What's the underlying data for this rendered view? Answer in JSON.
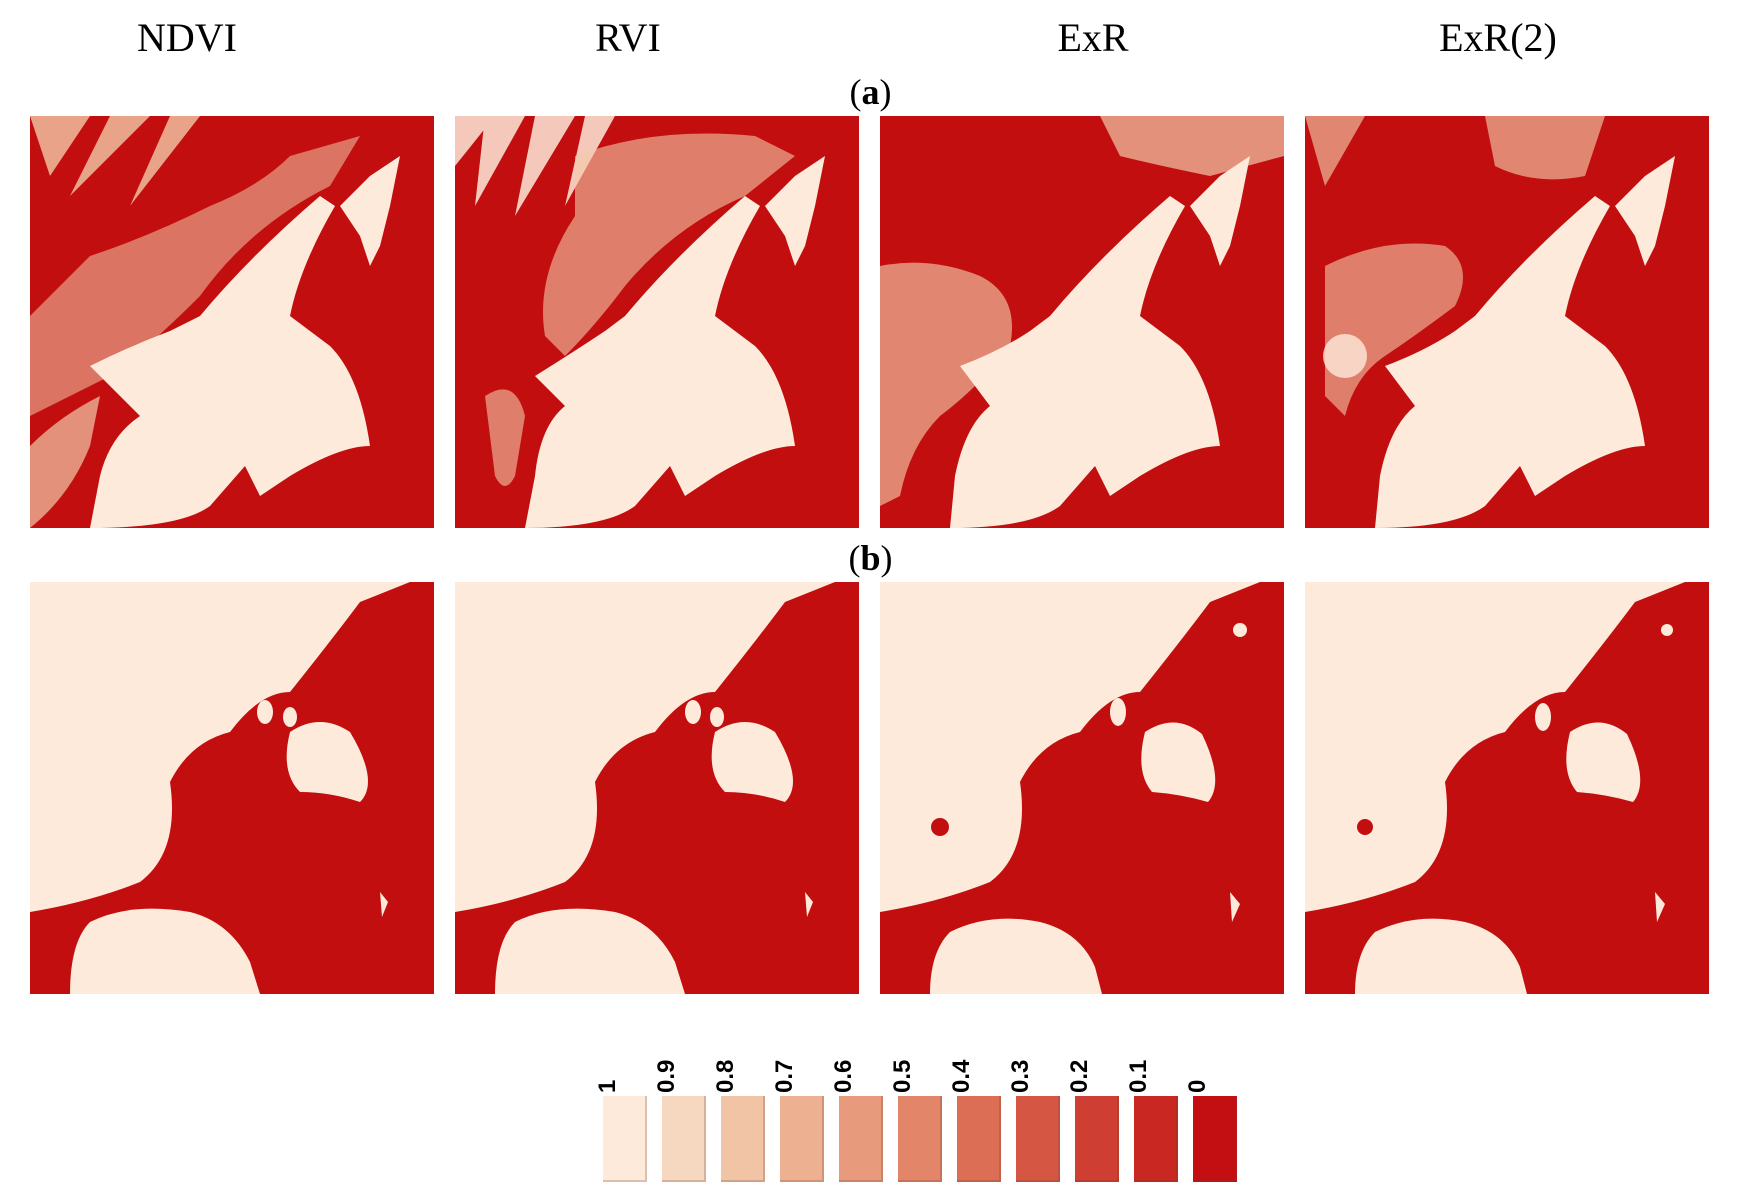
{
  "columns": [
    {
      "title": "NDVI"
    },
    {
      "title": "RVI"
    },
    {
      "title": "ExR"
    },
    {
      "title": "ExR(2)"
    }
  ],
  "rows": [
    {
      "label_open": "(",
      "label_letter": "a",
      "label_close": ")"
    },
    {
      "label_open": "(",
      "label_letter": "b",
      "label_close": ")"
    }
  ],
  "colors": {
    "high": "#fdeadb",
    "low": "#c20e0e",
    "speckle": "#f1c9a8"
  },
  "legend": {
    "items": [
      {
        "label": "1",
        "color": "#fdeadb"
      },
      {
        "label": "0.9",
        "color": "#f6d8c0"
      },
      {
        "label": "0.8",
        "color": "#f2c4a6"
      },
      {
        "label": "0.7",
        "color": "#edb191"
      },
      {
        "label": "0.6",
        "color": "#e89a7c"
      },
      {
        "label": "0.5",
        "color": "#e28569"
      },
      {
        "label": "0.4",
        "color": "#db6e55"
      },
      {
        "label": "0.3",
        "color": "#d55643"
      },
      {
        "label": "0.2",
        "color": "#cf3e32"
      },
      {
        "label": "0.1",
        "color": "#c92822"
      },
      {
        "label": "0",
        "color": "#c30f12"
      }
    ]
  }
}
